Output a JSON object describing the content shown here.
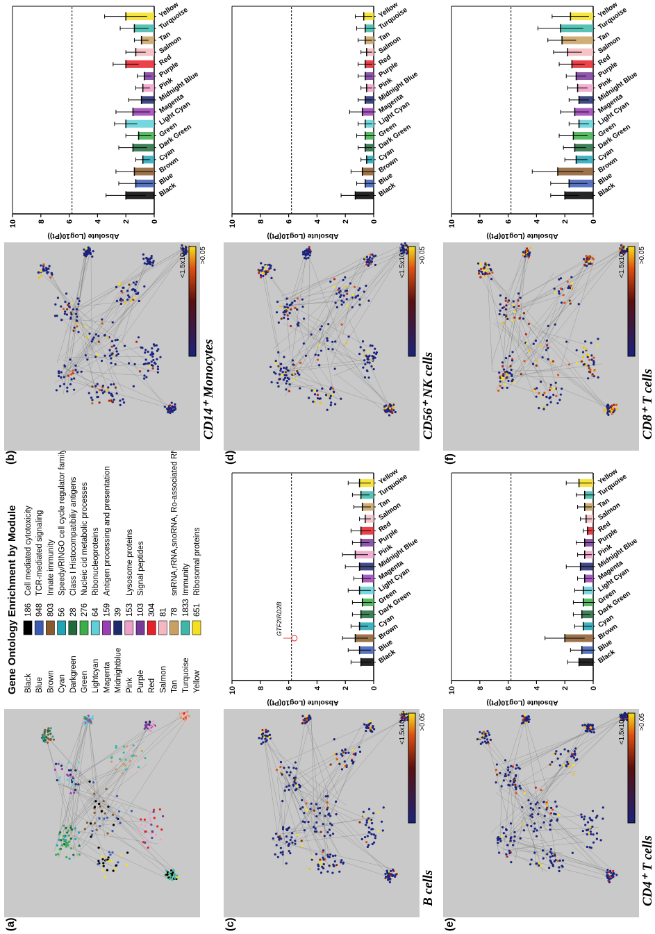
{
  "figure": {
    "legend": {
      "title": "Gene Ontology Enrichment by Module",
      "items": [
        {
          "name": "Black",
          "color": "#000000",
          "count": 186,
          "description": "Cell mediated cytotoxicity"
        },
        {
          "name": "Blue",
          "color": "#3b5bb5",
          "count": 948,
          "description": "TCR-mediated signaling"
        },
        {
          "name": "Brown",
          "color": "#8b5a2b",
          "count": 803,
          "description": "Innate immunity"
        },
        {
          "name": "Cyan",
          "color": "#1fa5b5",
          "count": 56,
          "description": "Speedy/RINGO cell cycle regulator family"
        },
        {
          "name": "Darkgreen",
          "color": "#1e6b3c",
          "count": 28,
          "description": "Class I Histocompatibiliy antigens"
        },
        {
          "name": "Green",
          "color": "#3cae4a",
          "count": 276,
          "description": "Nucleic cid metabolic processes"
        },
        {
          "name": "Lightcyan",
          "color": "#5fd0d8",
          "count": 64,
          "description": "Ribonucleoproteins"
        },
        {
          "name": "Magenta",
          "color": "#9b3fb5",
          "count": 159,
          "description": "Antigen processing and presentation"
        },
        {
          "name": "Midnightblue",
          "color": "#202a6e",
          "count": 39
        },
        {
          "name": "Pink",
          "color": "#f0a0c8",
          "count": 153,
          "description": "Lysosome proteins"
        },
        {
          "name": "Purple",
          "color": "#7a3a9a",
          "count": 103,
          "description": "Signal peptides"
        },
        {
          "name": "Red",
          "color": "#e8202a",
          "count": 304
        },
        {
          "name": "Salmon",
          "color": "#f5b8c0",
          "count": 81
        },
        {
          "name": "Tan",
          "color": "#c8a060",
          "count": 78,
          "description": "snRNA,rRNA,snoRNA, Ro-associated RNA"
        },
        {
          "name": "Turquoise",
          "color": "#3bb8a8",
          "count": 1833,
          "description": "Immunity"
        },
        {
          "name": "Yellow",
          "color": "#f5e020",
          "count": 651,
          "description": "Ribosomal proteins"
        }
      ]
    },
    "panels": [
      {
        "label": "(a)"
      },
      {
        "label": "(b)",
        "caption": "CD14⁺ Monocytes",
        "scale_high": "<1.5x10⁻⁶",
        "scale_low": ">0.05"
      },
      {
        "label": "(c)",
        "caption": "B cells",
        "scale_high": "<1.5x10⁻⁶",
        "scale_low": ">0.05"
      },
      {
        "label": "(d)",
        "caption": "CD56⁺ NK cells",
        "scale_high": "<1.5x10⁻⁶",
        "scale_low": ">0.05"
      },
      {
        "label": "(e)",
        "caption": "CD4⁺ T cells",
        "scale_high": "<1.5x10⁻⁶",
        "scale_low": ">0.05"
      },
      {
        "label": "(f)",
        "caption": "CD8⁺ T cells",
        "scale_high": "<1.5x10⁻⁶",
        "scale_low": ">0.05"
      }
    ]
  },
  "chart_data": [
    {
      "type": "bar",
      "ylabel": "Absolute (Log10(Pt))",
      "ylim": [
        0,
        10
      ],
      "yticks": [
        0,
        2,
        4,
        6,
        8,
        10
      ],
      "threshold": 5.8,
      "categories": [
        "Black",
        "Blue",
        "Brown",
        "Cyan",
        "Dark Green",
        "Green",
        "Light Cyan",
        "Magenta",
        "Midnight Blue",
        "Pink",
        "Purple",
        "Red",
        "Salmon",
        "Tan",
        "Turquoise",
        "Yellow"
      ],
      "colors": [
        "#000000",
        "#3b5bb5",
        "#8b5a2b",
        "#1fa5b5",
        "#1e6b3c",
        "#3cae4a",
        "#5fd0d8",
        "#9b3fb5",
        "#202a6e",
        "#f0a0c8",
        "#7a3a9a",
        "#e8202a",
        "#f5b8c0",
        "#c8a060",
        "#3bb8a8",
        "#f5e020"
      ],
      "values": [
        2.0,
        1.3,
        1.4,
        0.8,
        1.5,
        1.1,
        2.0,
        1.5,
        0.9,
        0.8,
        0.7,
        2.0,
        1.3,
        0.9,
        1.4,
        2.0
      ],
      "errors": [
        1.4,
        1.2,
        1.3,
        0.5,
        1.0,
        0.9,
        0.8,
        1.2,
        0.9,
        0.5,
        0.5,
        0.9,
        0.7,
        0.5,
        1.0,
        1.5
      ]
    },
    {
      "type": "bar",
      "ylabel": "Absolute (Log10(Pt))",
      "ylim": [
        0,
        10
      ],
      "yticks": [
        0,
        2,
        4,
        6,
        8,
        10
      ],
      "threshold": 5.8,
      "categories": [
        "Black",
        "Blue",
        "Brown",
        "Cyan",
        "Dark Green",
        "Green",
        "Light Cyan",
        "Magenta",
        "Midnight Blue",
        "Pink",
        "Purple",
        "Red",
        "Salmon",
        "Tan",
        "Turquoise",
        "Yellow"
      ],
      "colors": [
        "#000000",
        "#3b5bb5",
        "#8b5a2b",
        "#1fa5b5",
        "#1e6b3c",
        "#3cae4a",
        "#5fd0d8",
        "#9b3fb5",
        "#202a6e",
        "#f0a0c8",
        "#7a3a9a",
        "#e8202a",
        "#f5b8c0",
        "#c8a060",
        "#3bb8a8",
        "#f5e020"
      ],
      "values": [
        0.9,
        1.0,
        1.3,
        1.0,
        0.9,
        0.8,
        1.0,
        0.8,
        1.0,
        1.3,
        0.9,
        0.9,
        0.6,
        0.8,
        0.9,
        1.0
      ],
      "errors": [
        0.7,
        0.8,
        0.9,
        0.6,
        0.6,
        0.7,
        0.8,
        0.6,
        1.0,
        0.9,
        0.6,
        0.7,
        0.4,
        0.6,
        0.6,
        0.8
      ],
      "annotation": {
        "text": "GTF2IRD2B",
        "category": "Brown",
        "y": 5.6
      }
    },
    {
      "type": "bar",
      "ylabel": "Absolute (Log10(Pt))",
      "ylim": [
        0,
        10
      ],
      "yticks": [
        0,
        2,
        4,
        6,
        8,
        10
      ],
      "threshold": 5.8,
      "categories": [
        "Black",
        "Blue",
        "Brown",
        "Cyan",
        "Dark Green",
        "Green",
        "Light Cyan",
        "Magenta",
        "Midnight Blue",
        "Pink",
        "Purple",
        "Red",
        "Salmon",
        "Tan",
        "Turquoise",
        "Yellow"
      ],
      "colors": [
        "#000000",
        "#3b5bb5",
        "#8b5a2b",
        "#1fa5b5",
        "#1e6b3c",
        "#3cae4a",
        "#5fd0d8",
        "#9b3fb5",
        "#202a6e",
        "#f0a0c8",
        "#7a3a9a",
        "#e8202a",
        "#f5b8c0",
        "#c8a060",
        "#3bb8a8",
        "#f5e020"
      ],
      "values": [
        1.3,
        0.6,
        0.8,
        0.5,
        0.6,
        0.6,
        0.6,
        0.8,
        0.6,
        0.5,
        0.6,
        0.6,
        0.5,
        0.6,
        0.6,
        0.7
      ],
      "errors": [
        1.0,
        0.6,
        0.8,
        0.4,
        0.5,
        0.6,
        0.5,
        0.9,
        0.5,
        0.4,
        0.5,
        0.5,
        0.4,
        0.5,
        0.6,
        0.6
      ]
    },
    {
      "type": "bar",
      "ylabel": "Absolute (Log10(Pt))",
      "ylim": [
        0,
        10
      ],
      "yticks": [
        0,
        2,
        4,
        6,
        8,
        10
      ],
      "threshold": 5.8,
      "categories": [
        "Black",
        "Blue",
        "Brown",
        "Cyan",
        "Dark Green",
        "Green",
        "Light Cyan",
        "Magenta",
        "Midnight Blue",
        "Pink",
        "Purple",
        "Red",
        "Salmon",
        "Tan",
        "Turquoise",
        "Yellow"
      ],
      "colors": [
        "#000000",
        "#3b5bb5",
        "#8b5a2b",
        "#1fa5b5",
        "#1e6b3c",
        "#3cae4a",
        "#5fd0d8",
        "#9b3fb5",
        "#202a6e",
        "#f0a0c8",
        "#7a3a9a",
        "#e8202a",
        "#f5b8c0",
        "#c8a060",
        "#3bb8a8",
        "#f5e020"
      ],
      "values": [
        1.0,
        0.8,
        2.0,
        0.7,
        0.8,
        0.7,
        0.7,
        0.6,
        0.9,
        0.6,
        0.6,
        0.4,
        0.5,
        0.6,
        0.6,
        1.0
      ],
      "errors": [
        0.8,
        0.8,
        1.4,
        0.6,
        0.6,
        0.7,
        0.6,
        0.5,
        1.0,
        0.5,
        0.6,
        0.3,
        0.4,
        0.5,
        0.6,
        0.9
      ]
    },
    {
      "type": "bar",
      "ylabel": "Absolute (Log10(Pt))",
      "ylim": [
        0,
        10
      ],
      "yticks": [
        0,
        2,
        4,
        6,
        8,
        10
      ],
      "threshold": 5.8,
      "categories": [
        "Black",
        "Blue",
        "Brown",
        "Cyan",
        "Dark Green",
        "Green",
        "Light Cyan",
        "Magenta",
        "Midnight Blue",
        "Pink",
        "Purple",
        "Red",
        "Salmon",
        "Tan",
        "Turquoise",
        "Yellow"
      ],
      "colors": [
        "#000000",
        "#3b5bb5",
        "#8b5a2b",
        "#1fa5b5",
        "#1e6b3c",
        "#3cae4a",
        "#5fd0d8",
        "#9b3fb5",
        "#202a6e",
        "#f0a0c8",
        "#7a3a9a",
        "#e8202a",
        "#f5b8c0",
        "#c8a060",
        "#3bb8a8",
        "#f5e020"
      ],
      "values": [
        2.0,
        1.7,
        2.5,
        1.2,
        1.3,
        1.4,
        1.0,
        1.3,
        1.0,
        1.1,
        1.2,
        1.5,
        1.8,
        2.2,
        2.3,
        1.6
      ],
      "errors": [
        1.0,
        1.3,
        1.8,
        0.8,
        0.8,
        1.0,
        0.7,
        1.0,
        0.7,
        0.7,
        0.7,
        0.9,
        1.0,
        1.0,
        1.6,
        1.3
      ]
    }
  ]
}
